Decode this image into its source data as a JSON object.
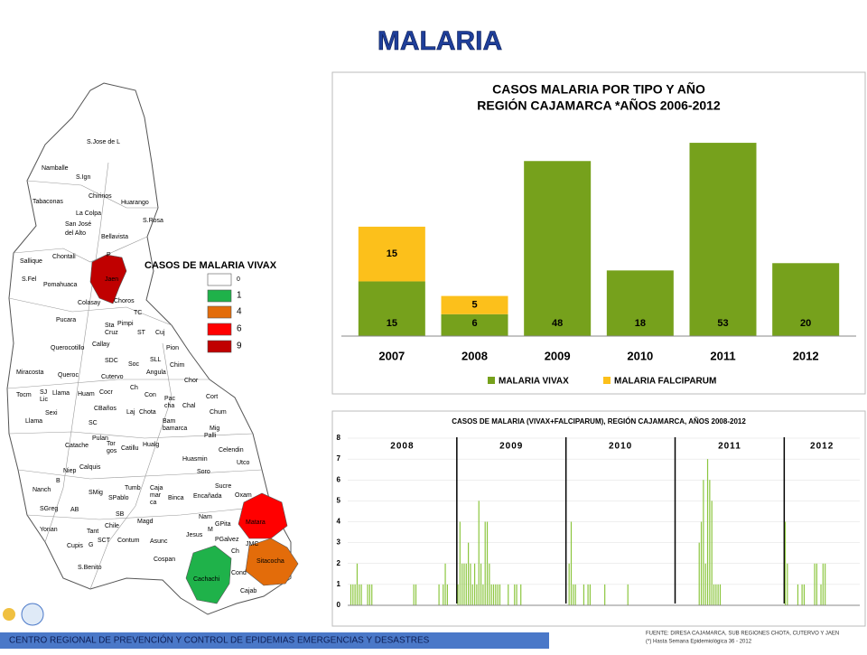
{
  "header": {
    "title": "MALARIA"
  },
  "map": {
    "title": "CASOS DE MALARIA VIVAX",
    "legend": [
      {
        "label": 0,
        "color": "#ffffff"
      },
      {
        "label": 1,
        "color": "#1fb24a"
      },
      {
        "label": 4,
        "color": "#e36c0a"
      },
      {
        "label": 6,
        "color": "#ff0000"
      },
      {
        "label": 9,
        "color": "#c00000"
      }
    ],
    "labels": [
      "S.Jose de L",
      "Namballe",
      "S.Ign",
      "Tabaconas",
      "Chirinos",
      "Huarango",
      "La Colpa",
      "S.Rosa",
      "San José",
      "del Alto",
      "Bellavista",
      "Chontali",
      "Sallique",
      "P",
      "Jaen",
      "S.Fel",
      "Pomahuaca",
      "Colasay",
      "Choros",
      "TC",
      "Pucara",
      "Sta",
      "Cruz",
      "Pimpi",
      "ST",
      "Cuj",
      "Querocotillo",
      "Callay",
      "Pion",
      "SDC",
      "Soc",
      "SLL",
      "Chim",
      "Miracosta",
      "Queroc",
      "Cutervo",
      "Angula",
      "Chor",
      "Tocm",
      "SJ",
      "Lic",
      "Llama",
      "Huam",
      "Cocr",
      "Ch",
      "Con",
      "Pac",
      "cha",
      "Cort",
      "Chal",
      "CBaños",
      "Laj",
      "Chota",
      "Chum",
      "Sexi",
      "Llama",
      "SC",
      "Bam",
      "bamarca",
      "Mig",
      "Palli",
      "Catache",
      "Pulan",
      "Tor",
      "gos",
      "Catillu",
      "Hualg",
      "Celendin",
      "Huasmin",
      "Utco",
      "Calquis",
      "Niep",
      "Soro",
      "B",
      "Tumb",
      "Caja",
      "mar",
      "ca",
      "Sucre",
      "Nanch",
      "SMig",
      "SPablo",
      "Binca",
      "Encañada",
      "Oxam",
      "SGreg",
      "AB",
      "SB",
      "Nam",
      "Magd",
      "Chile",
      "Matara",
      "Yonan",
      "Tant",
      "M",
      "GPita",
      "SCT",
      "Contum",
      "Asunc",
      "Jesus",
      "PGalvez",
      "JMC",
      "Cupis",
      "G",
      "Sitacocha",
      "Ch",
      "Cospan",
      "S.Benito",
      "Cond",
      "Cachachi",
      "Cajab"
    ]
  },
  "chart_data": [
    {
      "type": "bar",
      "stacked": true,
      "title": "CASOS MALARIA POR TIPO Y AÑO",
      "subtitle": "REGIÓN CAJAMARCA *AÑOS 2006-2012",
      "categories": [
        "2007",
        "2008",
        "2009",
        "2010",
        "2011",
        "2012"
      ],
      "series": [
        {
          "name": "MALARIA VIVAX",
          "color": "#76a11c",
          "values": [
            15,
            6,
            48,
            18,
            53,
            20
          ]
        },
        {
          "name": "MALARIA FALCIPARUM",
          "color": "#fcc01b",
          "values": [
            15,
            5,
            null,
            null,
            null,
            null
          ]
        }
      ],
      "ylim": [
        0,
        55
      ]
    },
    {
      "type": "bar",
      "title": "CASOS DE MALARIA (VIVAX+FALCIPARUM), REGIÓN CAJAMARCA, AÑOS 2008-2012",
      "color": "#8cc63f",
      "ylim": [
        0,
        8
      ],
      "yticks": [
        0,
        1,
        2,
        3,
        4,
        5,
        6,
        7,
        8
      ],
      "grid": true,
      "groups": [
        {
          "label": "2008",
          "values": [
            0,
            1,
            1,
            1,
            2,
            1,
            1,
            0,
            0,
            1,
            1,
            1,
            0,
            0,
            0,
            0,
            0,
            0,
            0,
            0,
            0,
            0,
            0,
            0,
            0,
            0,
            0,
            0,
            0,
            0,
            0,
            1,
            1,
            0,
            0,
            0,
            0,
            0,
            0,
            0,
            0,
            0,
            0,
            1,
            0,
            1,
            2,
            1,
            0,
            0,
            0,
            0
          ]
        },
        {
          "label": "2009",
          "values": [
            1,
            4,
            2,
            2,
            2,
            3,
            2,
            1,
            2,
            1,
            5,
            2,
            1,
            4,
            4,
            2,
            1,
            1,
            1,
            1,
            1,
            0,
            0,
            0,
            1,
            0,
            0,
            1,
            1,
            0,
            1,
            0,
            0,
            0,
            0,
            0,
            0,
            0,
            0,
            0,
            0,
            0,
            0,
            0,
            0,
            0,
            0,
            0,
            0,
            0,
            0,
            0
          ]
        },
        {
          "label": "2010",
          "values": [
            0,
            2,
            4,
            1,
            1,
            0,
            0,
            0,
            1,
            0,
            1,
            1,
            0,
            0,
            0,
            0,
            0,
            0,
            1,
            0,
            0,
            0,
            0,
            0,
            0,
            0,
            0,
            0,
            0,
            1,
            0,
            0,
            0,
            0,
            0,
            0,
            0,
            0,
            0,
            0,
            0,
            0,
            0,
            0,
            0,
            0,
            0,
            0,
            0,
            0,
            0,
            0
          ]
        },
        {
          "label": "2011",
          "values": [
            0,
            0,
            0,
            0,
            0,
            0,
            0,
            0,
            0,
            0,
            0,
            3,
            4,
            6,
            2,
            7,
            6,
            5,
            1,
            1,
            1,
            1,
            0,
            0,
            0,
            0,
            0,
            0,
            0,
            0,
            0,
            0,
            0,
            0,
            0,
            0,
            0,
            0,
            0,
            0,
            0,
            0,
            0,
            0,
            0,
            0,
            0,
            0,
            0,
            0,
            0,
            0
          ]
        },
        {
          "label": "2012",
          "values": [
            4,
            2,
            0,
            0,
            0,
            0,
            1,
            0,
            1,
            1,
            0,
            0,
            0,
            0,
            2,
            2,
            0,
            1,
            2,
            2,
            0,
            0,
            0,
            0,
            0,
            0,
            0,
            0,
            0,
            0,
            0,
            0,
            0,
            0,
            0,
            0
          ]
        }
      ]
    }
  ],
  "footer": {
    "org": "CENTRO REGIONAL DE PREVENCIÓN Y CONTROL DE EPIDEMIAS EMERGENCIAS Y DESASTRES",
    "source": "FUENTE: DIRESA CAJAMARCA, SUB REGIONES CHOTA, CUTERVO Y JAEN",
    "note": "(*) Hasta Semana Epidemiológica 36 - 2012"
  }
}
